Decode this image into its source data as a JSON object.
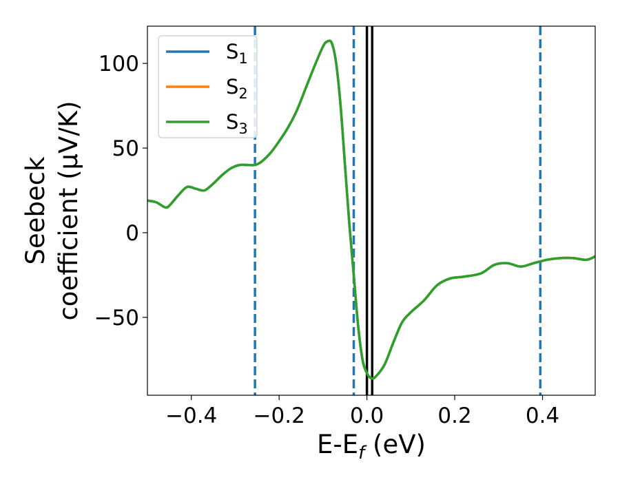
{
  "chart_data": {
    "type": "line",
    "title": "",
    "xlabel": {
      "main": "E-E",
      "sub": "f",
      "tail": " (eV)"
    },
    "ylabel": {
      "line1": "Seebeck",
      "line2": "coefficient  (μV/K)"
    },
    "xlim": [
      -0.5,
      0.52
    ],
    "ylim": [
      -96,
      122
    ],
    "xticks": [
      -0.4,
      -0.2,
      0.0,
      0.2,
      0.4
    ],
    "xtick_labels": [
      "−0.4",
      "−0.2",
      "0.0",
      "0.2",
      "0.4"
    ],
    "yticks": [
      -50,
      0,
      50,
      100
    ],
    "ytick_labels": [
      "−50",
      "0",
      "50",
      "100"
    ],
    "grid": false,
    "legend_position": "top-left",
    "vlines_dashed": [
      -0.255,
      -0.03,
      0.395
    ],
    "vlines_solid": [
      0.0,
      0.012
    ],
    "vline_colors": {
      "dashed": "#1f77b4",
      "solid": "#000000"
    },
    "x": [
      -0.5,
      -0.48,
      -0.46,
      -0.45,
      -0.43,
      -0.41,
      -0.39,
      -0.37,
      -0.35,
      -0.33,
      -0.31,
      -0.29,
      -0.27,
      -0.255,
      -0.24,
      -0.22,
      -0.2,
      -0.18,
      -0.16,
      -0.14,
      -0.12,
      -0.1,
      -0.09,
      -0.08,
      -0.07,
      -0.06,
      -0.05,
      -0.04,
      -0.03,
      -0.02,
      -0.01,
      0.0,
      0.01,
      0.02,
      0.04,
      0.06,
      0.08,
      0.1,
      0.13,
      0.16,
      0.19,
      0.22,
      0.26,
      0.29,
      0.32,
      0.35,
      0.38,
      0.41,
      0.44,
      0.47,
      0.5,
      0.52
    ],
    "series": [
      {
        "name": "S",
        "sub": "1",
        "color": "#1f77b4",
        "values": [
          19,
          18,
          15,
          16,
          22,
          27,
          26,
          25,
          29,
          34,
          38,
          40,
          40,
          40,
          42,
          47,
          54,
          62,
          72,
          85,
          98,
          110,
          113,
          112,
          100,
          75,
          40,
          5,
          -25,
          -55,
          -75,
          -83,
          -86,
          -85,
          -78,
          -65,
          -53,
          -47,
          -40,
          -31,
          -27,
          -26,
          -24,
          -19,
          -18,
          -20,
          -18,
          -16,
          -15,
          -15,
          -16,
          -14
        ]
      },
      {
        "name": "S",
        "sub": "2",
        "color": "#ff7f0e",
        "values": [
          19,
          18,
          15,
          16,
          22,
          27,
          26,
          25,
          29,
          34,
          38,
          40,
          40,
          40,
          42,
          47,
          54,
          62,
          72,
          85,
          98,
          110,
          113,
          112,
          100,
          75,
          40,
          5,
          -25,
          -55,
          -75,
          -83,
          -86,
          -85,
          -78,
          -65,
          -53,
          -47,
          -40,
          -31,
          -27,
          -26,
          -24,
          -19,
          -18,
          -20,
          -18,
          -16,
          -15,
          -15,
          -16,
          -14
        ]
      },
      {
        "name": "S",
        "sub": "3",
        "color": "#2ca02c",
        "values": [
          19,
          18,
          15,
          16,
          22,
          27,
          26,
          25,
          29,
          34,
          38,
          40,
          40,
          40,
          42,
          47,
          54,
          62,
          72,
          85,
          98,
          110,
          113,
          112,
          100,
          75,
          40,
          5,
          -25,
          -55,
          -75,
          -83,
          -86,
          -85,
          -78,
          -65,
          -53,
          -47,
          -40,
          -31,
          -27,
          -26,
          -24,
          -19,
          -18,
          -20,
          -18,
          -16,
          -15,
          -15,
          -16,
          -14
        ]
      }
    ]
  }
}
